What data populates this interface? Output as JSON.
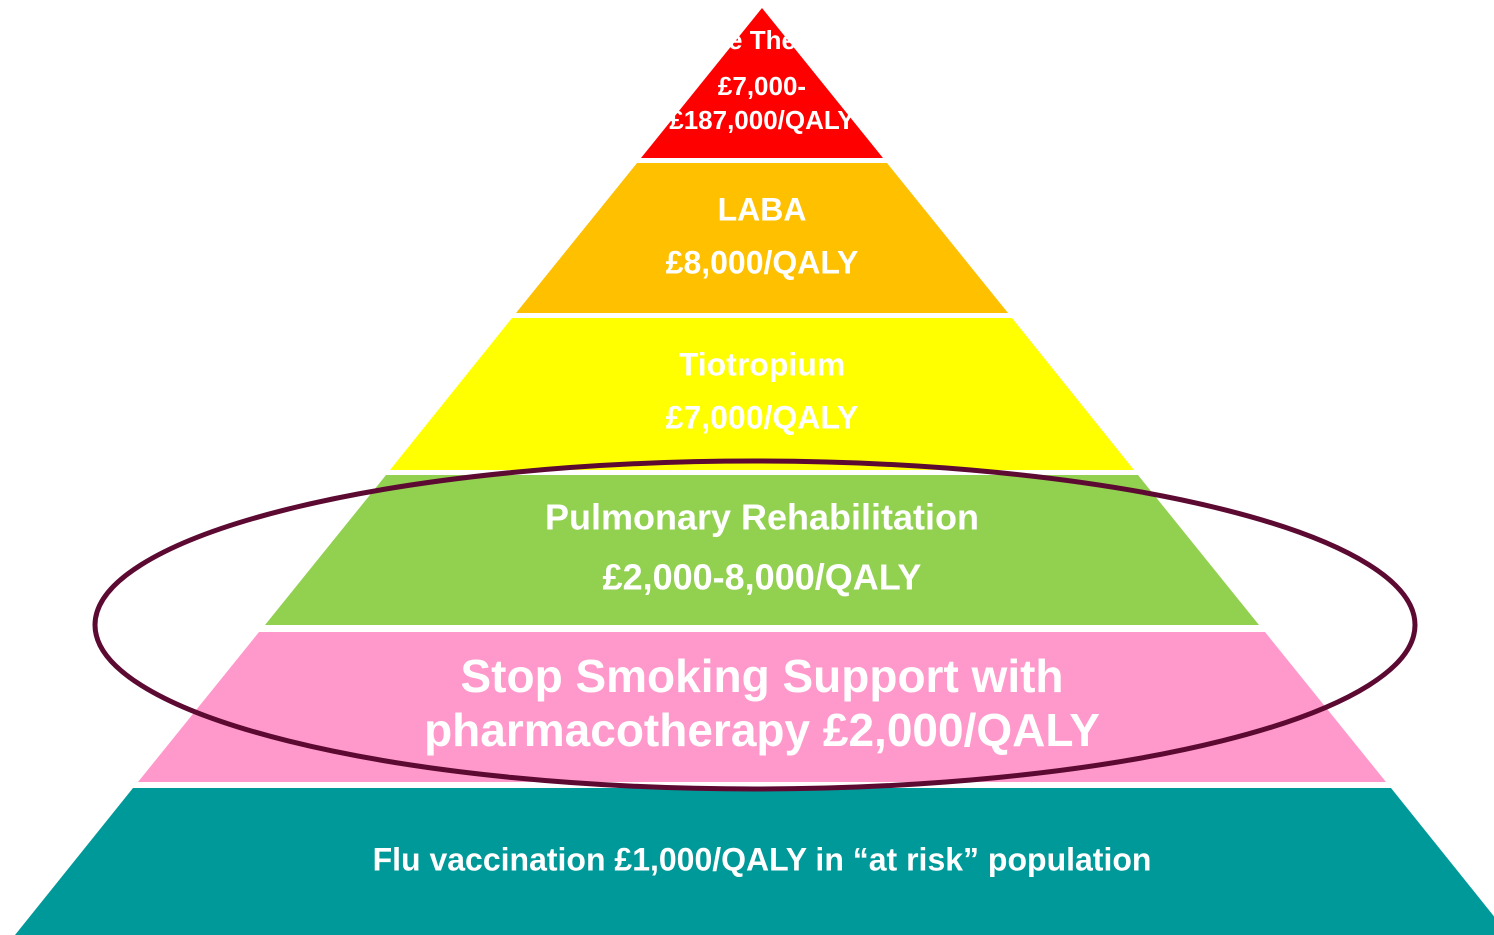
{
  "tiers": [
    {
      "lines": [
        "Triple Therapy",
        "£7,000-",
        "£187,000/QALY"
      ]
    },
    {
      "lines": [
        "LABA",
        "£8,000/QALY"
      ]
    },
    {
      "lines": [
        "Tiotropium",
        "£7,000/QALY"
      ]
    },
    {
      "lines": [
        "Pulmonary Rehabilitation",
        "£2,000-8,000/QALY"
      ]
    },
    {
      "lines": [
        "Stop Smoking Support with",
        "pharmacotherapy £2,000/QALY"
      ]
    },
    {
      "lines": [
        "Flu vaccination £1,000/QALY in “at risk” population"
      ]
    }
  ]
}
